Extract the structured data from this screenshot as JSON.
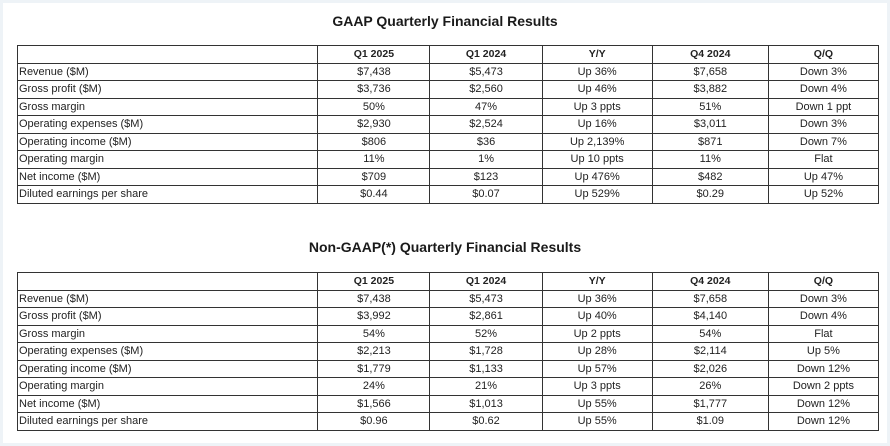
{
  "gaap": {
    "title": "GAAP Quarterly Financial Results",
    "columns": [
      "",
      "Q1 2025",
      "Q1 2024",
      "Y/Y",
      "Q4 2024",
      "Q/Q"
    ],
    "rows": [
      [
        "Revenue ($M)",
        "$7,438",
        "$5,473",
        "Up 36%",
        "$7,658",
        "Down 3%"
      ],
      [
        "Gross profit ($M)",
        "$3,736",
        "$2,560",
        "Up 46%",
        "$3,882",
        "Down 4%"
      ],
      [
        "Gross margin",
        "50%",
        "47%",
        "Up 3 ppts",
        "51%",
        "Down 1 ppt"
      ],
      [
        "Operating expenses ($M)",
        "$2,930",
        "$2,524",
        "Up 16%",
        "$3,011",
        "Down 3%"
      ],
      [
        "Operating income ($M)",
        "$806",
        "$36",
        "Up 2,139%",
        "$871",
        "Down 7%"
      ],
      [
        "Operating margin",
        "11%",
        "1%",
        "Up 10 ppts",
        "11%",
        "Flat"
      ],
      [
        "Net income ($M)",
        "$709",
        "$123",
        "Up 476%",
        "$482",
        "Up 47%"
      ],
      [
        "Diluted earnings per share",
        "$0.44",
        "$0.07",
        "Up 529%",
        "$0.29",
        "Up 52%"
      ]
    ]
  },
  "non_gaap": {
    "title": "Non-GAAP(*) Quarterly Financial Results",
    "columns": [
      "",
      "Q1 2025",
      "Q1 2024",
      "Y/Y",
      "Q4 2024",
      "Q/Q"
    ],
    "rows": [
      [
        "Revenue ($M)",
        "$7,438",
        "$5,473",
        "Up 36%",
        "$7,658",
        "Down 3%"
      ],
      [
        "Gross profit ($M)",
        "$3,992",
        "$2,861",
        "Up 40%",
        "$4,140",
        "Down 4%"
      ],
      [
        "Gross margin",
        "54%",
        "52%",
        "Up 2 ppts",
        "54%",
        "Flat"
      ],
      [
        "Operating expenses ($M)",
        "$2,213",
        "$1,728",
        "Up 28%",
        "$2,114",
        "Up 5%"
      ],
      [
        "Operating income ($M)",
        "$1,779",
        "$1,133",
        "Up 57%",
        "$2,026",
        "Down 12%"
      ],
      [
        "Operating margin",
        "24%",
        "21%",
        "Up 3 ppts",
        "26%",
        "Down 2 ppts"
      ],
      [
        "Net income ($M)",
        "$1,566",
        "$1,013",
        "Up 55%",
        "$1,777",
        "Down 12%"
      ],
      [
        "Diluted earnings per share",
        "$0.96",
        "$0.62",
        "Up 55%",
        "$1.09",
        "Down 12%"
      ]
    ]
  }
}
